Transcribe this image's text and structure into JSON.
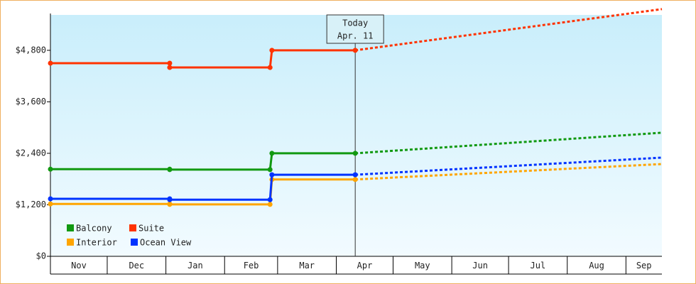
{
  "chart_data": {
    "type": "line",
    "xlim": [
      0,
      323
    ],
    "xticks": [
      {
        "value": 0,
        "label": "Nov"
      },
      {
        "value": 30,
        "label": "Dec"
      },
      {
        "value": 61,
        "label": "Jan"
      },
      {
        "value": 92,
        "label": "Feb"
      },
      {
        "value": 120,
        "label": "Mar"
      },
      {
        "value": 151,
        "label": "Apr"
      },
      {
        "value": 181,
        "label": "May"
      },
      {
        "value": 212,
        "label": "Jun"
      },
      {
        "value": 242,
        "label": "Jul"
      },
      {
        "value": 273,
        "label": "Aug"
      },
      {
        "value": 304,
        "label": "Sep"
      }
    ],
    "ylim": [
      0,
      5625
    ],
    "yticks": [
      {
        "value": 0,
        "label": "$0"
      },
      {
        "value": 1200,
        "label": "$1,200"
      },
      {
        "value": 2400,
        "label": "$2,400"
      },
      {
        "value": 3600,
        "label": "$3,600"
      },
      {
        "value": 4800,
        "label": "$4,800"
      }
    ],
    "annotation": {
      "x": 161,
      "label": "Today",
      "date": "Apr. 11"
    },
    "series": [
      {
        "name": "Balcony",
        "color": "#119911",
        "x": [
          0,
          63,
          63,
          116,
          117,
          161
        ],
        "values": [
          2030,
          2030,
          2020,
          2020,
          2400,
          2400
        ],
        "projection": {
          "x": [
            161,
            323
          ],
          "values": [
            2400,
            2880
          ]
        }
      },
      {
        "name": "Suite",
        "color": "#ff3300",
        "x": [
          0,
          63,
          63,
          116,
          117,
          161
        ],
        "values": [
          4500,
          4500,
          4400,
          4400,
          4800,
          4800
        ],
        "projection": {
          "x": [
            161,
            323
          ],
          "values": [
            4800,
            5760
          ]
        }
      },
      {
        "name": "Interior",
        "color": "#ffa500",
        "x": [
          0,
          63,
          63,
          116,
          117,
          161
        ],
        "values": [
          1220,
          1220,
          1210,
          1210,
          1790,
          1790
        ],
        "projection": {
          "x": [
            161,
            323
          ],
          "values": [
            1790,
            2150
          ]
        }
      },
      {
        "name": "Ocean View",
        "color": "#0033ff",
        "x": [
          0,
          63,
          63,
          116,
          117,
          161
        ],
        "values": [
          1340,
          1340,
          1320,
          1320,
          1900,
          1900
        ],
        "projection": {
          "x": [
            161,
            323
          ],
          "values": [
            1900,
            2300
          ]
        }
      }
    ]
  }
}
